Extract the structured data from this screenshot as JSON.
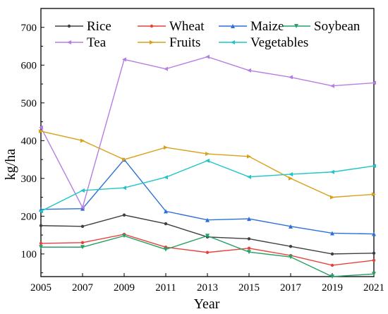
{
  "chart_data": {
    "type": "line",
    "xlabel": "Year",
    "ylabel": "kg/ha",
    "x": [
      2005,
      2007,
      2009,
      2011,
      2013,
      2015,
      2017,
      2019,
      2021
    ],
    "x_ticks": [
      "2005",
      "2007",
      "2009",
      "2011",
      "2013",
      "2015",
      "2017",
      "2019",
      "2021"
    ],
    "y_ticks": [
      "100",
      "200",
      "300",
      "400",
      "500",
      "600",
      "700"
    ],
    "xlim": [
      2005,
      2021
    ],
    "ylim": [
      40,
      750
    ],
    "grid": false,
    "legend_position": "top",
    "series": [
      {
        "name": "Rice",
        "color": "#404040",
        "marker": "circle",
        "values": [
          175,
          173,
          203,
          180,
          145,
          140,
          120,
          100,
          102
        ]
      },
      {
        "name": "Wheat",
        "color": "#e8413c",
        "marker": "circle",
        "values": [
          128,
          130,
          152,
          118,
          104,
          115,
          96,
          70,
          83
        ]
      },
      {
        "name": "Maize",
        "color": "#2e6fd8",
        "marker": "triangle-up",
        "values": [
          218,
          220,
          350,
          213,
          190,
          193,
          173,
          155,
          153
        ]
      },
      {
        "name": "Soybean",
        "color": "#27a067",
        "marker": "triangle-down",
        "values": [
          118,
          118,
          148,
          112,
          148,
          105,
          92,
          40,
          47
        ]
      },
      {
        "name": "Tea",
        "color": "#b57ee3",
        "marker": "triangle-left",
        "values": [
          435,
          223,
          615,
          590,
          622,
          586,
          568,
          545,
          553
        ]
      },
      {
        "name": "Fruits",
        "color": "#d9a01c",
        "marker": "triangle-right",
        "values": [
          425,
          400,
          350,
          382,
          365,
          358,
          300,
          250,
          258
        ]
      },
      {
        "name": "Vegetables",
        "color": "#20c6c6",
        "marker": "triangle-left",
        "values": [
          213,
          268,
          275,
          303,
          347,
          304,
          311,
          317,
          333
        ]
      }
    ]
  }
}
